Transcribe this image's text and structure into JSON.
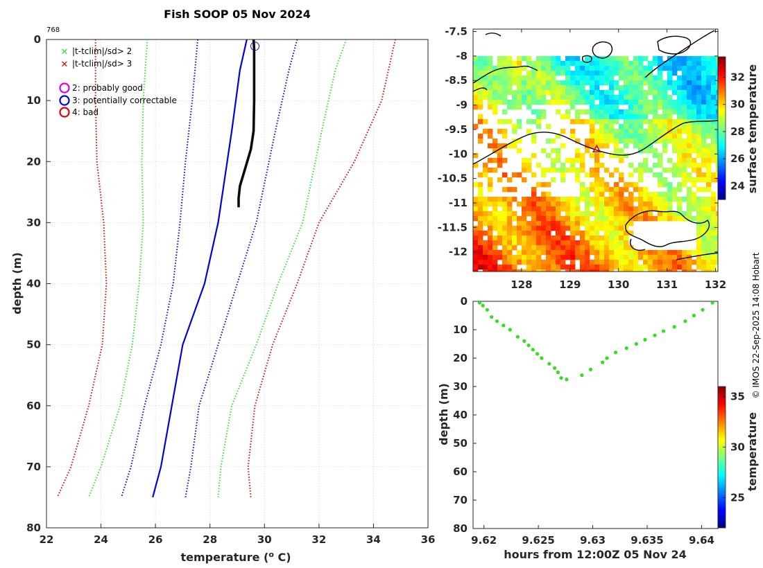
{
  "title": "Fish SOOP 05 Nov 2024",
  "profile_id": "768",
  "credit": "© IMOS 22-Sep-2025 14:08 Hobart",
  "colors": {
    "red": "#e00000",
    "green": "#33dd33",
    "blue": "#0000dd",
    "black": "#000000",
    "obs": "#0a0a0a",
    "magenta": "#dd00dd",
    "point_green": "#33dd22"
  },
  "legend": {
    "tclim2": "|t-tclim|/sd> 2",
    "tclim3": "|t-tclim|/sd> 3",
    "flag2": "2: probably good",
    "flag3": "3: potentially correctable",
    "flag4": "4: bad"
  },
  "chart_data": [
    {
      "type": "line",
      "name": "temperature-depth profile",
      "xlabel": "temperature (",
      "xlabel_sup": "o",
      "xlabel_unit": " C)",
      "ylabel": "depth (m)",
      "xlim": [
        22,
        36
      ],
      "ylim": [
        0,
        80
      ],
      "y_reversed": true,
      "xticks": [
        22,
        24,
        26,
        28,
        30,
        32,
        34,
        36
      ],
      "yticks": [
        0,
        10,
        20,
        30,
        40,
        50,
        60,
        70,
        80
      ],
      "grid": true,
      "series": [
        {
          "name": "observed",
          "style": "solid-thick",
          "color": "obs",
          "x": [
            29.6,
            29.62,
            29.62,
            29.6,
            29.5,
            29.3,
            29.1,
            29.05,
            29.05
          ],
          "y": [
            0,
            1.5,
            10,
            15,
            18,
            21,
            24,
            26,
            27.5
          ]
        },
        {
          "name": "climatology mean",
          "style": "solid",
          "color": "blue",
          "x": [
            29.35,
            29.1,
            28.8,
            28.3,
            27.8,
            27.0,
            26.6,
            26.2,
            25.9
          ],
          "y": [
            0,
            5,
            15,
            30,
            40,
            50,
            60,
            70,
            75
          ]
        },
        {
          "name": "mean-1sd",
          "style": "dotted",
          "color": "blue",
          "x": [
            27.55,
            27.35,
            27.1,
            26.9,
            26.65,
            26.2,
            25.6,
            25.1,
            24.75
          ],
          "y": [
            0,
            10,
            20,
            30,
            40,
            50,
            60,
            70,
            75
          ]
        },
        {
          "name": "mean+1sd",
          "style": "dotted",
          "color": "blue",
          "x": [
            31.2,
            30.9,
            30.4,
            29.7,
            29.0,
            28.3,
            27.6,
            27.3,
            27.1
          ],
          "y": [
            0,
            5,
            15,
            30,
            40,
            50,
            60,
            70,
            75
          ]
        },
        {
          "name": "mean-2sd",
          "style": "dotted",
          "color": "green",
          "x": [
            25.7,
            25.55,
            25.5,
            25.55,
            25.4,
            25.15,
            24.7,
            24.0,
            23.55
          ],
          "y": [
            0,
            10,
            20,
            30,
            40,
            50,
            60,
            70,
            75
          ]
        },
        {
          "name": "mean+2sd",
          "style": "dotted",
          "color": "green",
          "x": [
            33.0,
            32.6,
            32.1,
            31.4,
            30.5,
            29.7,
            28.8,
            28.4,
            28.3
          ],
          "y": [
            0,
            5,
            15,
            30,
            40,
            50,
            60,
            70,
            75
          ]
        },
        {
          "name": "mean-3sd",
          "style": "dotted",
          "color": "red",
          "x": [
            23.8,
            23.8,
            23.85,
            24.1,
            24.2,
            24.05,
            23.55,
            22.9,
            22.4
          ],
          "y": [
            0,
            10,
            20,
            30,
            40,
            50,
            60,
            70,
            75
          ]
        },
        {
          "name": "mean+3sd",
          "style": "dotted",
          "color": "red",
          "x": [
            34.8,
            34.3,
            33.3,
            32.0,
            31.2,
            30.3,
            29.65,
            29.4,
            29.5
          ],
          "y": [
            0,
            10,
            20,
            30,
            40,
            50,
            60,
            70,
            75
          ]
        }
      ],
      "markers": [
        {
          "name": "surface flag circle",
          "color": "blue",
          "x": 29.65,
          "y": 1.1
        }
      ]
    },
    {
      "type": "heatmap",
      "name": "surface temperature map",
      "xlim": [
        127,
        132.05
      ],
      "ylim": [
        -12.4,
        -7.45
      ],
      "xticks": [
        128,
        129,
        130,
        131,
        132
      ],
      "yticks": [
        -7.5,
        -8,
        -8.5,
        -9,
        -9.5,
        -10,
        -10.5,
        -11,
        -11.5,
        -12
      ],
      "data_top_lat": -8.0,
      "colorbar": {
        "label": "surface temperature",
        "range": [
          23,
          33.5
        ],
        "ticks": [
          24,
          26,
          28,
          30,
          32
        ]
      },
      "location": {
        "lon": 129.55,
        "lat": -9.9
      }
    },
    {
      "type": "scatter",
      "name": "depth vs time",
      "xlabel": "hours from 12:00Z 05 Nov 24",
      "ylabel": "depth (m)",
      "xlim": [
        9.619,
        9.6415
      ],
      "ylim": [
        0,
        80
      ],
      "y_reversed": true,
      "xticks": [
        9.62,
        9.625,
        9.63,
        9.635,
        9.64
      ],
      "xtick_labels": [
        "9.62",
        "9.625",
        "9.63",
        "9.635",
        "9.64"
      ],
      "yticks": [
        0,
        10,
        20,
        30,
        40,
        50,
        60,
        70,
        80
      ],
      "colorbar": {
        "label": "temperature",
        "range": [
          22,
          36
        ],
        "ticks": [
          25,
          30,
          35
        ]
      },
      "x": [
        9.6196,
        9.6199,
        9.6203,
        9.6207,
        9.6212,
        9.6218,
        9.6224,
        9.6231,
        9.6237,
        9.6241,
        9.6245,
        9.6249,
        9.6253,
        9.626,
        9.6265,
        9.6268,
        9.6271,
        9.6276,
        9.629,
        9.6298,
        9.6309,
        9.6313,
        9.6321,
        9.6331,
        9.634,
        9.6348,
        9.6357,
        9.6365,
        9.6375,
        9.6385,
        9.6393,
        9.6401,
        9.641
      ],
      "y": [
        0.5,
        1.5,
        3.0,
        5.5,
        7.0,
        8.5,
        10.0,
        12.5,
        14.0,
        15.5,
        17.0,
        18.5,
        20.0,
        22.0,
        23.5,
        25.0,
        27.0,
        27.5,
        26.0,
        24.0,
        21.5,
        20.0,
        18.0,
        16.5,
        15.0,
        13.5,
        12.0,
        10.5,
        9.0,
        7.0,
        5.0,
        3.0,
        0.5
      ]
    }
  ]
}
